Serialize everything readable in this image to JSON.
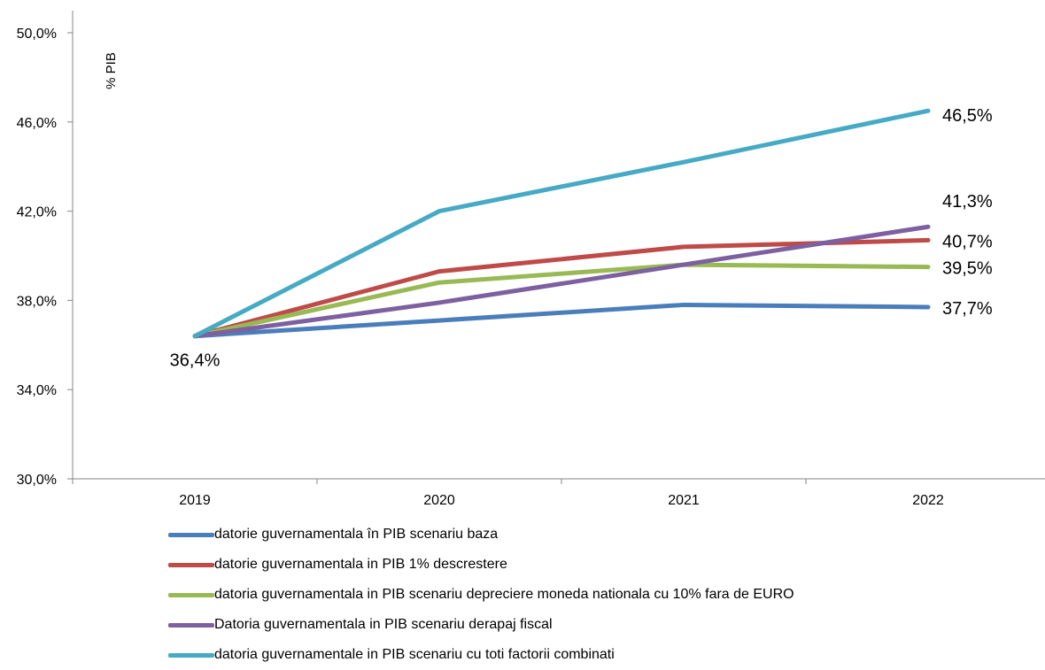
{
  "chart_data": {
    "type": "line",
    "ylabel": "% PIB",
    "xlabel": "",
    "categories": [
      "2019",
      "2020",
      "2021",
      "2022"
    ],
    "ylim": [
      30,
      50
    ],
    "yticks": [
      30,
      34,
      38,
      42,
      46,
      50
    ],
    "ytick_labels": [
      "30,0%",
      "34,0%",
      "38,0%",
      "42,0%",
      "46,0%",
      "50,0%"
    ],
    "grid": false,
    "legend_position": "bottom",
    "start_label": "36,4%",
    "series": [
      {
        "name": "datorie guvernamentala în PIB scenariu baza",
        "color": "#4A7EBB",
        "values": [
          36.4,
          37.1,
          37.8,
          37.7
        ],
        "end_label": "37,7%"
      },
      {
        "name": "datorie guvernamentala in  PIB 1% descrestere",
        "color": "#BE4B48",
        "values": [
          36.4,
          39.3,
          40.4,
          40.7
        ],
        "end_label": "40,7%"
      },
      {
        "name": "datoria guvernamentala in PIB  scenariu depreciere moneda nationala cu 10% fara de EURO",
        "color": "#98B954",
        "values": [
          36.4,
          38.8,
          39.6,
          39.5
        ],
        "end_label": "39,5%"
      },
      {
        "name": "Datoria guvernamentala in PIB scenariu derapaj fiscal",
        "color": "#7D60A0",
        "values": [
          36.4,
          37.9,
          39.6,
          41.3
        ],
        "end_label": "41,3%"
      },
      {
        "name": "datoria guvernamentale in PIB scenariu cu toti factorii combinati",
        "color": "#46AAC5",
        "values": [
          36.4,
          42.0,
          44.2,
          46.5
        ],
        "end_label": "46,5%"
      }
    ]
  }
}
